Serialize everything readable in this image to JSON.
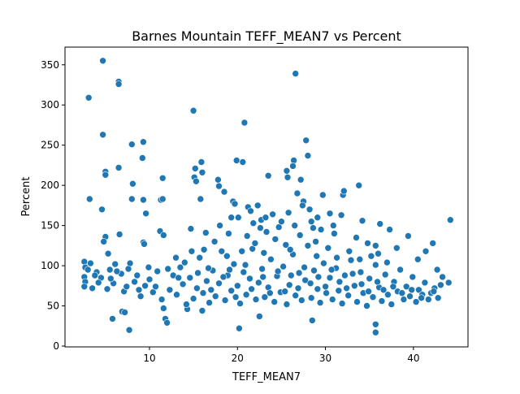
{
  "chart_data": {
    "type": "scatter",
    "title": "Barnes Mountain TEFF_MEAN7 vs Percent",
    "xlabel": "TEFF_MEAN7",
    "ylabel": "Percent",
    "xlim": [
      0.4,
      46.2
    ],
    "ylim": [
      -1,
      372
    ],
    "xticks": [
      10,
      20,
      30,
      40
    ],
    "yticks": [
      0,
      50,
      100,
      150,
      200,
      250,
      300,
      350
    ],
    "grid": false,
    "legend": "none",
    "marker_color": "#1f77b4",
    "points": [
      [
        4.7,
        355
      ],
      [
        3.1,
        309
      ],
      [
        6.5,
        329
      ],
      [
        6.5,
        326
      ],
      [
        4.7,
        263
      ],
      [
        15.0,
        293
      ],
      [
        26.6,
        339
      ],
      [
        20.8,
        278
      ],
      [
        5.0,
        217
      ],
      [
        5.0,
        213
      ],
      [
        6.5,
        222
      ],
      [
        8.0,
        251
      ],
      [
        9.3,
        254
      ],
      [
        9.2,
        234
      ],
      [
        15.2,
        221
      ],
      [
        15.1,
        210
      ],
      [
        15.3,
        205
      ],
      [
        15.9,
        229
      ],
      [
        16.0,
        216
      ],
      [
        19.9,
        231
      ],
      [
        20.6,
        229
      ],
      [
        23.5,
        212
      ],
      [
        26.4,
        231
      ],
      [
        26.3,
        224
      ],
      [
        27.8,
        256
      ],
      [
        28.0,
        237
      ],
      [
        25.6,
        218
      ],
      [
        25.7,
        210
      ],
      [
        27.2,
        207
      ],
      [
        33.8,
        200
      ],
      [
        32.0,
        188
      ],
      [
        32.1,
        193
      ],
      [
        3.2,
        183
      ],
      [
        8.0,
        183
      ],
      [
        8.1,
        202
      ],
      [
        9.3,
        182
      ],
      [
        11.3,
        182
      ],
      [
        11.5,
        209
      ],
      [
        4.6,
        170
      ],
      [
        9.6,
        165
      ],
      [
        11.5,
        183
      ],
      [
        15.8,
        183
      ],
      [
        17.8,
        207
      ],
      [
        17.9,
        199
      ],
      [
        19.5,
        180
      ],
      [
        21.2,
        173
      ],
      [
        22.3,
        175
      ],
      [
        24.0,
        164
      ],
      [
        25.8,
        166
      ],
      [
        27.5,
        180
      ],
      [
        29.7,
        188
      ],
      [
        30.5,
        165
      ],
      [
        31.8,
        163
      ],
      [
        34.2,
        156
      ],
      [
        36.2,
        152
      ],
      [
        37.3,
        145
      ],
      [
        39.4,
        137
      ],
      [
        41.4,
        118
      ],
      [
        42.2,
        128
      ],
      [
        44.2,
        157
      ],
      [
        6.6,
        139
      ],
      [
        5.0,
        136
      ],
      [
        4.8,
        130
      ],
      [
        9.3,
        129
      ],
      [
        9.4,
        127
      ],
      [
        11.2,
        143
      ],
      [
        11.6,
        138
      ],
      [
        14.7,
        146
      ],
      [
        16.4,
        141
      ],
      [
        18.0,
        150
      ],
      [
        19.3,
        160
      ],
      [
        21.8,
        153
      ],
      [
        22.6,
        147
      ],
      [
        23.3,
        142
      ],
      [
        26.5,
        150
      ],
      [
        28.4,
        155
      ],
      [
        29.5,
        145
      ],
      [
        31.0,
        140
      ],
      [
        33.5,
        135
      ],
      [
        34.8,
        128
      ],
      [
        35.7,
        125
      ],
      [
        36.0,
        115
      ],
      [
        38.1,
        122
      ],
      [
        40.5,
        108
      ],
      [
        42.7,
        95
      ],
      [
        43.3,
        86
      ],
      [
        44.0,
        79
      ],
      [
        5.3,
        115
      ],
      [
        2.6,
        105
      ],
      [
        2.7,
        98
      ],
      [
        2.6,
        86
      ],
      [
        2.7,
        80
      ],
      [
        2.6,
        74
      ],
      [
        3.5,
        72
      ],
      [
        3.3,
        103
      ],
      [
        4.0,
        92
      ],
      [
        4.5,
        85
      ],
      [
        5.5,
        95
      ],
      [
        5.8,
        34
      ],
      [
        6.9,
        43
      ],
      [
        7.2,
        42
      ],
      [
        7.7,
        20
      ],
      [
        9.9,
        98
      ],
      [
        11.8,
        34
      ],
      [
        12.0,
        29
      ],
      [
        11.6,
        47
      ],
      [
        14.3,
        46
      ],
      [
        16.0,
        44
      ],
      [
        20.2,
        22
      ],
      [
        22.5,
        37
      ],
      [
        28.5,
        32
      ],
      [
        35.7,
        27
      ],
      [
        35.7,
        17
      ],
      [
        5.2,
        71
      ],
      [
        5.9,
        78
      ],
      [
        6.1,
        102
      ],
      [
        6.8,
        90
      ],
      [
        7.1,
        68
      ],
      [
        7.4,
        74
      ],
      [
        7.8,
        103
      ],
      [
        8.3,
        80
      ],
      [
        8.6,
        88
      ],
      [
        9.0,
        62
      ],
      [
        9.5,
        75
      ],
      [
        10.0,
        83
      ],
      [
        10.4,
        67
      ],
      [
        10.9,
        93
      ],
      [
        11.4,
        58
      ],
      [
        12.3,
        70
      ],
      [
        12.7,
        88
      ],
      [
        13.1,
        64
      ],
      [
        13.5,
        98
      ],
      [
        13.8,
        77
      ],
      [
        14.2,
        52
      ],
      [
        14.6,
        85
      ],
      [
        15.0,
        59
      ],
      [
        15.4,
        72
      ],
      [
        15.7,
        110
      ],
      [
        16.1,
        66
      ],
      [
        16.5,
        81
      ],
      [
        16.8,
        54
      ],
      [
        17.2,
        94
      ],
      [
        17.5,
        62
      ],
      [
        17.9,
        78
      ],
      [
        18.2,
        118
      ],
      [
        18.6,
        57
      ],
      [
        18.9,
        88
      ],
      [
        19.3,
        69
      ],
      [
        19.6,
        102
      ],
      [
        20.0,
        75
      ],
      [
        20.3,
        53
      ],
      [
        20.7,
        92
      ],
      [
        21.0,
        64
      ],
      [
        21.4,
        84
      ],
      [
        21.7,
        121
      ],
      [
        22.1,
        58
      ],
      [
        22.4,
        79
      ],
      [
        22.8,
        96
      ],
      [
        23.1,
        61
      ],
      [
        23.5,
        73
      ],
      [
        23.8,
        108
      ],
      [
        24.2,
        55
      ],
      [
        24.5,
        87
      ],
      [
        24.9,
        67
      ],
      [
        25.2,
        99
      ],
      [
        25.6,
        52
      ],
      [
        25.9,
        76
      ],
      [
        26.3,
        114
      ],
      [
        26.6,
        63
      ],
      [
        27.0,
        91
      ],
      [
        27.3,
        57
      ],
      [
        27.7,
        82
      ],
      [
        28.0,
        125
      ],
      [
        28.4,
        60
      ],
      [
        28.7,
        94
      ],
      [
        29.1,
        71
      ],
      [
        29.4,
        54
      ],
      [
        29.8,
        103
      ],
      [
        30.1,
        66
      ],
      [
        30.5,
        85
      ],
      [
        30.8,
        58
      ],
      [
        31.2,
        97
      ],
      [
        31.5,
        69
      ],
      [
        31.9,
        53
      ],
      [
        32.2,
        88
      ],
      [
        32.6,
        63
      ],
      [
        32.9,
        107
      ],
      [
        33.3,
        75
      ],
      [
        33.6,
        55
      ],
      [
        34.0,
        92
      ],
      [
        34.3,
        66
      ],
      [
        34.7,
        50
      ],
      [
        35.0,
        84
      ],
      [
        35.4,
        61
      ],
      [
        35.7,
        101
      ],
      [
        36.1,
        73
      ],
      [
        36.4,
        56
      ],
      [
        36.8,
        89
      ],
      [
        37.1,
        64
      ],
      [
        37.5,
        52
      ],
      [
        37.8,
        80
      ],
      [
        38.2,
        68
      ],
      [
        38.5,
        95
      ],
      [
        38.9,
        58
      ],
      [
        39.2,
        74
      ],
      [
        39.6,
        62
      ],
      [
        39.9,
        86
      ],
      [
        40.3,
        55
      ],
      [
        40.6,
        70
      ],
      [
        41.0,
        64
      ],
      [
        41.3,
        79
      ],
      [
        41.7,
        58
      ],
      [
        42.0,
        66
      ],
      [
        42.4,
        72
      ],
      [
        42.8,
        60
      ],
      [
        43.1,
        76
      ],
      [
        3.0,
        95
      ],
      [
        3.8,
        88
      ],
      [
        4.2,
        79
      ],
      [
        5.6,
        84
      ],
      [
        6.3,
        93
      ],
      [
        7.6,
        96
      ],
      [
        8.8,
        70
      ],
      [
        10.7,
        74
      ],
      [
        12.1,
        96
      ],
      [
        13.3,
        85
      ],
      [
        14.0,
        104
      ],
      [
        15.5,
        91
      ],
      [
        16.7,
        97
      ],
      [
        17.0,
        70
      ],
      [
        18.4,
        86
      ],
      [
        19.1,
        95
      ],
      [
        19.8,
        61
      ],
      [
        20.9,
        101
      ],
      [
        21.6,
        71
      ],
      [
        22.9,
        86
      ],
      [
        23.7,
        66
      ],
      [
        24.6,
        93
      ],
      [
        25.4,
        68
      ],
      [
        26.1,
        88
      ],
      [
        26.9,
        72
      ],
      [
        27.6,
        98
      ],
      [
        28.3,
        78
      ],
      [
        29.2,
        86
      ],
      [
        30.0,
        74
      ],
      [
        30.7,
        95
      ],
      [
        31.6,
        80
      ],
      [
        32.4,
        72
      ],
      [
        33.1,
        90
      ],
      [
        34.1,
        77
      ],
      [
        34.9,
        68
      ],
      [
        35.9,
        80
      ],
      [
        36.6,
        70
      ],
      [
        37.7,
        74
      ],
      [
        38.7,
        66
      ],
      [
        39.8,
        70
      ],
      [
        40.9,
        60
      ],
      [
        42.3,
        68
      ],
      [
        17.4,
        130
      ],
      [
        19.0,
        140
      ],
      [
        21.1,
        137
      ],
      [
        22.0,
        128
      ],
      [
        24.3,
        133
      ],
      [
        25.5,
        126
      ],
      [
        27.1,
        138
      ],
      [
        28.9,
        130
      ],
      [
        30.3,
        122
      ],
      [
        32.7,
        118
      ],
      [
        16.2,
        120
      ],
      [
        18.8,
        112
      ],
      [
        20.5,
        118
      ],
      [
        23.0,
        116
      ],
      [
        26.0,
        120
      ],
      [
        29.0,
        112
      ],
      [
        31.3,
        110
      ],
      [
        33.9,
        108
      ],
      [
        35.2,
        112
      ],
      [
        37.0,
        104
      ],
      [
        13.0,
        110
      ],
      [
        14.8,
        118
      ],
      [
        20.1,
        160
      ],
      [
        22.7,
        157
      ],
      [
        24.7,
        148
      ],
      [
        25.0,
        155
      ],
      [
        28.6,
        147
      ],
      [
        30.9,
        150
      ],
      [
        18.5,
        192
      ],
      [
        19.7,
        177
      ],
      [
        21.5,
        168
      ],
      [
        23.2,
        160
      ],
      [
        26.8,
        190
      ],
      [
        27.4,
        175
      ],
      [
        28.2,
        170
      ],
      [
        29.1,
        160
      ]
    ]
  }
}
